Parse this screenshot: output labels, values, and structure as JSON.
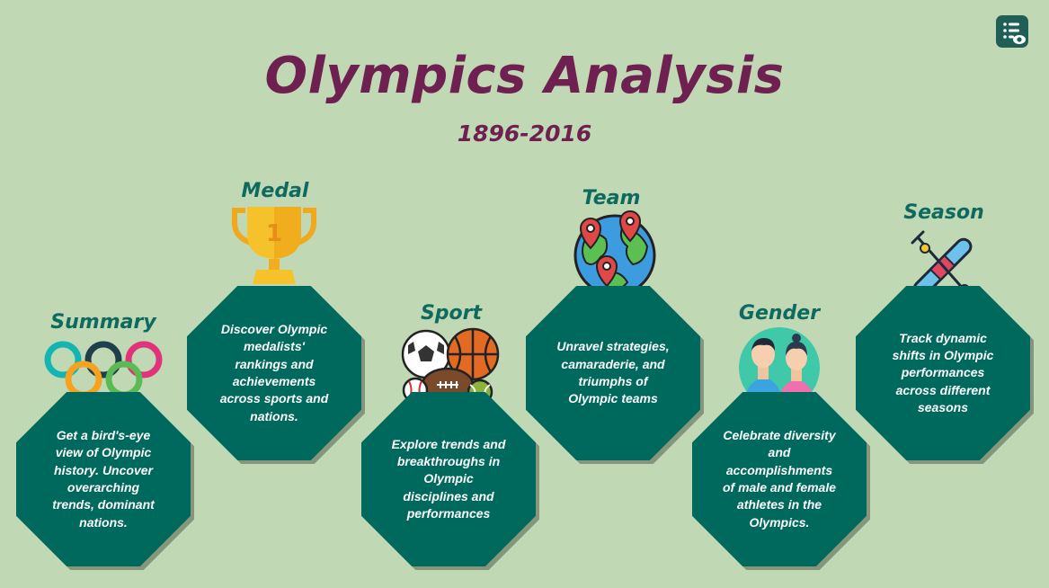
{
  "header": {
    "title": "Olympics Analysis",
    "subtitle": "1896-2016"
  },
  "corner_button": {
    "icon": "list-view-icon"
  },
  "colors": {
    "background": "#c1d8b5",
    "title": "#6e2151",
    "label": "#0e6a5f",
    "card": "#00695e",
    "card_text": "#ffffff"
  },
  "cards": [
    {
      "label": "Summary",
      "icon": "olympic-rings-icon",
      "description": "Get a bird's-eye view of Olympic history. Uncover overarching trends, dominant nations."
    },
    {
      "label": "Medal",
      "icon": "trophy-icon",
      "description": "Discover Olympic medalists' rankings and achievements across sports and nations."
    },
    {
      "label": "Sport",
      "icon": "sports-balls-icon",
      "description": "Explore trends and breakthroughs in Olympic disciplines and performances"
    },
    {
      "label": "Team",
      "icon": "globe-pins-icon",
      "description": "Unravel strategies, camaraderie, and triumphs of Olympic teams"
    },
    {
      "label": "Gender",
      "icon": "male-female-athletes-icon",
      "description": "Celebrate diversity and accomplishments of male and female athletes in the Olympics."
    },
    {
      "label": "Season",
      "icon": "skis-icon",
      "description": "Track dynamic shifts in Olympic performances across different seasons"
    }
  ]
}
